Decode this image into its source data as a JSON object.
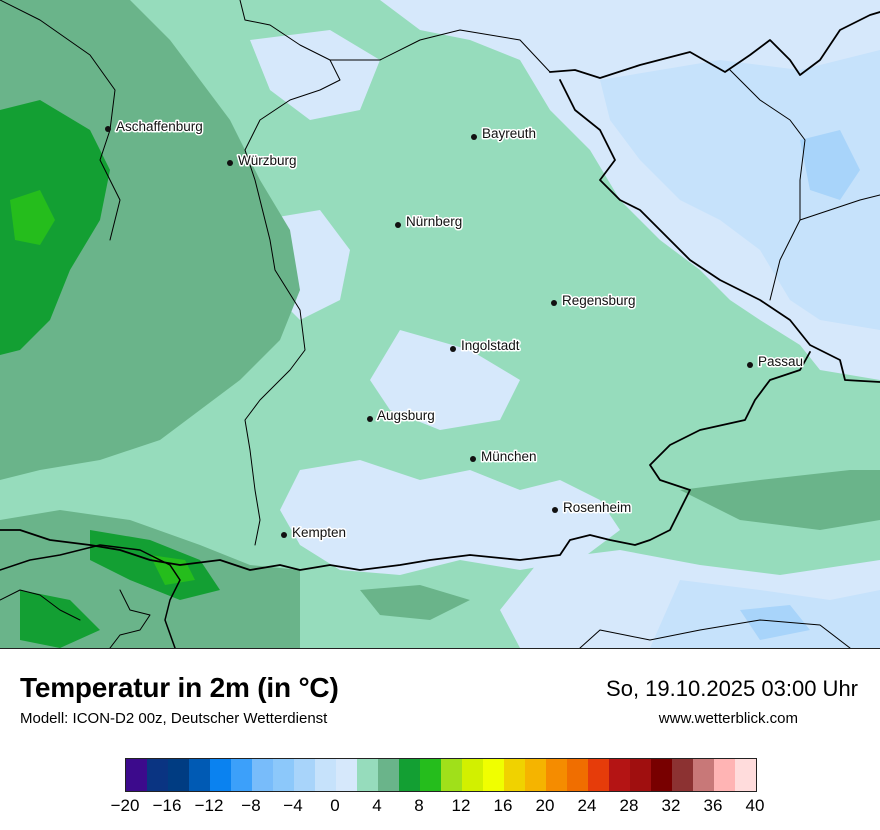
{
  "header": {
    "title": "Temperatur in 2m (in °C)",
    "model": "Modell: ICON-D2 00z, Deutscher Wetterdienst",
    "valid_time": "So, 19.10.2025 03:00 Uhr",
    "website": "www.wetterblick.com"
  },
  "map": {
    "cities": [
      {
        "name": "Aschaffenburg"
      },
      {
        "name": "Würzburg"
      },
      {
        "name": "Bayreuth"
      },
      {
        "name": "Nürnberg"
      },
      {
        "name": "Regensburg"
      },
      {
        "name": "Ingolstadt"
      },
      {
        "name": "Passau"
      },
      {
        "name": "Augsburg"
      },
      {
        "name": "München"
      },
      {
        "name": "Rosenheim"
      },
      {
        "name": "Kempten"
      }
    ],
    "field_colors": {
      "t_0_2": "#d6e8fb",
      "t_2_4": "#96dcbc",
      "t_4_6": "#6ab48a",
      "t_6_8": "#139f33",
      "t_8_10": "#25bd1c",
      "t_m2_0": "#c6e2fb",
      "t_m4_m2": "#a8d4fa"
    }
  },
  "legend": {
    "colors": [
      "#3c0a8c",
      "#0a3482",
      "#003c82",
      "#005ab4",
      "#0a82f0",
      "#3ca0fa",
      "#78bcfa",
      "#8cc8fa",
      "#a8d4fa",
      "#c6e2fb",
      "#d6e8fb",
      "#96dcbc",
      "#6ab48a",
      "#139f33",
      "#25bd1c",
      "#a0e01a",
      "#d2f000",
      "#f0ff00",
      "#f0d200",
      "#f5b400",
      "#f58c00",
      "#f06e00",
      "#e63c0a",
      "#b41414",
      "#a00f0f",
      "#780000",
      "#8c3232",
      "#c87878",
      "#ffb4b4",
      "#ffdcdc"
    ],
    "ticks": [
      "−20",
      "−16",
      "−12",
      "−8",
      "−4",
      "0",
      "4",
      "8",
      "12",
      "16",
      "20",
      "24",
      "28",
      "32",
      "36",
      "40"
    ],
    "min": -20,
    "max": 40
  }
}
